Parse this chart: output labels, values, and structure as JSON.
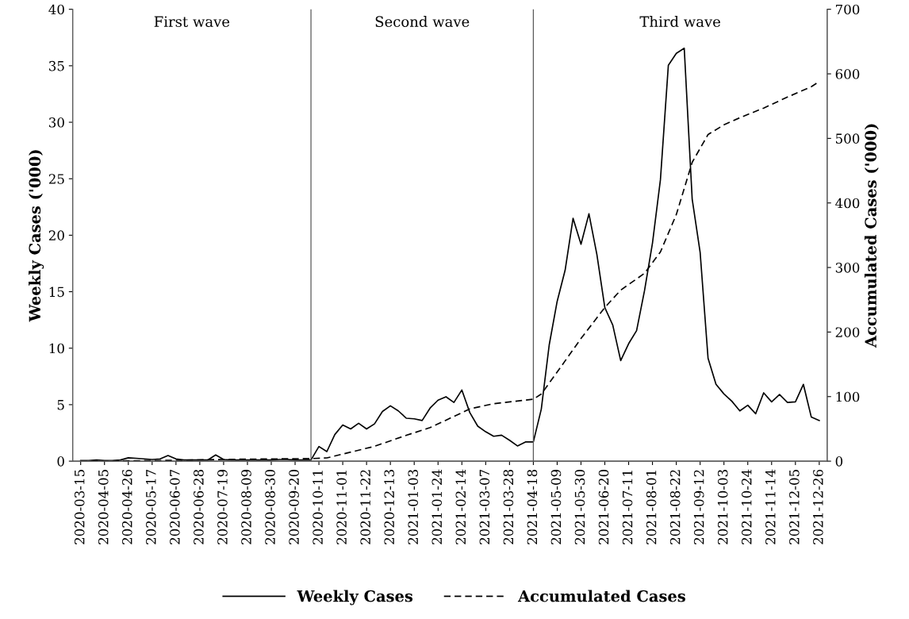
{
  "chart_data": {
    "type": "line",
    "ylabel": "Weekly Cases ('000)",
    "y2label": "Accumulated Cases ('000)",
    "ylim": [
      0,
      40
    ],
    "yticks": [
      0,
      5,
      10,
      15,
      20,
      25,
      30,
      35,
      40
    ],
    "y2lim": [
      0,
      700
    ],
    "y2ticks": [
      0,
      100,
      200,
      300,
      400,
      500,
      600,
      700
    ],
    "xlim": [
      "2020-03-08",
      "2022-01-02"
    ],
    "xticks": [
      "2020-03-15",
      "2020-04-05",
      "2020-04-26",
      "2020-05-17",
      "2020-06-07",
      "2020-06-28",
      "2020-07-19",
      "2020-08-09",
      "2020-08-30",
      "2020-09-20",
      "2020-10-11",
      "2020-11-01",
      "2020-11-22",
      "2020-12-13",
      "2021-01-03",
      "2021-01-24",
      "2021-02-14",
      "2021-03-07",
      "2021-03-28",
      "2021-04-18",
      "2021-05-09",
      "2021-05-30",
      "2021-06-20",
      "2021-07-11",
      "2021-08-01",
      "2021-08-22",
      "2021-09-12",
      "2021-10-03",
      "2021-10-24",
      "2021-11-14",
      "2021-12-05",
      "2021-12-26"
    ],
    "grid": false,
    "legend": "bottom",
    "marker": "none",
    "ref_lines": [
      {
        "axis": "x",
        "value": "2020-10-04",
        "color": "#595959"
      },
      {
        "axis": "x",
        "value": "2021-04-18",
        "color": "#595959"
      }
    ],
    "annotations": [
      "First wave",
      "Second wave",
      "Third wave"
    ],
    "series": [
      {
        "name": "Weekly Cases",
        "color": "#000000",
        "line_style": "solid",
        "x": [
          "2020-03-15",
          "2020-03-22",
          "2020-03-29",
          "2020-04-05",
          "2020-04-12",
          "2020-04-19",
          "2020-04-26",
          "2020-05-03",
          "2020-05-10",
          "2020-05-17",
          "2020-05-24",
          "2020-05-31",
          "2020-06-07",
          "2020-06-14",
          "2020-06-21",
          "2020-06-28",
          "2020-07-05",
          "2020-07-12",
          "2020-07-19",
          "2020-07-26",
          "2020-08-02",
          "2020-08-09",
          "2020-08-16",
          "2020-08-23",
          "2020-08-30",
          "2020-09-06",
          "2020-09-13",
          "2020-09-20",
          "2020-09-27",
          "2020-10-04",
          "2020-10-11",
          "2020-10-18",
          "2020-10-25",
          "2020-11-01",
          "2020-11-08",
          "2020-11-15",
          "2020-11-22",
          "2020-11-29",
          "2020-12-06",
          "2020-12-13",
          "2020-12-20",
          "2020-12-27",
          "2021-01-03",
          "2021-01-10",
          "2021-01-17",
          "2021-01-24",
          "2021-01-31",
          "2021-02-07",
          "2021-02-14",
          "2021-02-21",
          "2021-02-28",
          "2021-03-07",
          "2021-03-14",
          "2021-03-21",
          "2021-03-28",
          "2021-04-04",
          "2021-04-11",
          "2021-04-18",
          "2021-04-25",
          "2021-05-02",
          "2021-05-09",
          "2021-05-16",
          "2021-05-23",
          "2021-05-30",
          "2021-06-06",
          "2021-06-13",
          "2021-06-20",
          "2021-06-27",
          "2021-07-04",
          "2021-07-11",
          "2021-07-18",
          "2021-07-25",
          "2021-08-01",
          "2021-08-08",
          "2021-08-15",
          "2021-08-22",
          "2021-08-29",
          "2021-09-05",
          "2021-09-12",
          "2021-09-19",
          "2021-09-26",
          "2021-10-03",
          "2021-10-10",
          "2021-10-17",
          "2021-10-24",
          "2021-10-31",
          "2021-11-07",
          "2021-11-14",
          "2021-11-21",
          "2021-11-28",
          "2021-12-05",
          "2021-12-12",
          "2021-12-19",
          "2021-12-26"
        ],
        "values": [
          0.05,
          0.05,
          0.1,
          0.05,
          0.05,
          0.1,
          0.3,
          0.25,
          0.2,
          0.15,
          0.2,
          0.5,
          0.2,
          0.1,
          0.1,
          0.1,
          0.1,
          0.55,
          0.15,
          0.1,
          0.1,
          0.1,
          0.1,
          0.1,
          0.1,
          0.15,
          0.15,
          0.1,
          0.1,
          0.1,
          1.3,
          0.85,
          2.35,
          3.2,
          2.85,
          3.35,
          2.85,
          3.3,
          4.4,
          4.9,
          4.45,
          3.8,
          3.75,
          3.6,
          4.7,
          5.4,
          5.7,
          5.2,
          6.3,
          4.3,
          3.1,
          2.6,
          2.2,
          2.3,
          1.85,
          1.35,
          1.7,
          1.7,
          4.6,
          10.3,
          14.15,
          16.9,
          21.5,
          19.2,
          21.9,
          18.3,
          13.6,
          12.05,
          8.9,
          10.4,
          11.55,
          15.1,
          19.3,
          24.9,
          35.05,
          36.1,
          36.55,
          23.2,
          18.5,
          9.1,
          6.8,
          5.95,
          5.3,
          4.45,
          4.95,
          4.2,
          6.05,
          5.25,
          5.9,
          5.2,
          5.25,
          6.8,
          3.9,
          3.6
        ]
      },
      {
        "name": "Accumulated Cases",
        "color": "#000000",
        "line_style": "dashed",
        "axis": "y2",
        "x": [
          "2020-03-15",
          "2020-05-24",
          "2020-08-02",
          "2020-10-04",
          "2020-10-18",
          "2020-11-29",
          "2020-12-27",
          "2021-01-17",
          "2021-02-14",
          "2021-02-21",
          "2021-03-14",
          "2021-04-18",
          "2021-04-25",
          "2021-05-09",
          "2021-05-30",
          "2021-06-20",
          "2021-07-04",
          "2021-07-25",
          "2021-08-08",
          "2021-08-22",
          "2021-09-05",
          "2021-09-19",
          "2021-10-03",
          "2021-10-17",
          "2021-11-07",
          "2021-11-28",
          "2021-12-19",
          "2021-12-26"
        ],
        "values": [
          0,
          1,
          3,
          4,
          5,
          23,
          40,
          52,
          75,
          81,
          89,
          96,
          104,
          138,
          190,
          238,
          265,
          291,
          324,
          382,
          463,
          506,
          521,
          532,
          547,
          564,
          580,
          588
        ]
      }
    ]
  }
}
